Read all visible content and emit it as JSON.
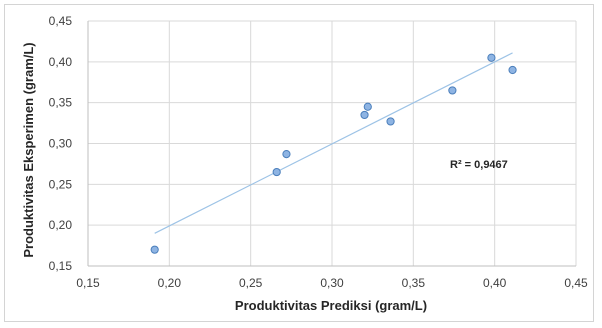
{
  "chart_data": {
    "type": "scatter",
    "xlabel": "Produktivitas Prediksi (gram/L)",
    "ylabel": "Produktivitas Eksperimen (gram/L)",
    "xlim": [
      0.15,
      0.45
    ],
    "ylim": [
      0.15,
      0.45
    ],
    "x_ticks": [
      "0,15",
      "0,20",
      "0,25",
      "0,30",
      "0,35",
      "0,40",
      "0,45"
    ],
    "y_ticks": [
      "0,15",
      "0,20",
      "0,25",
      "0,30",
      "0,35",
      "0,40",
      "0,45"
    ],
    "x_tick_values": [
      0.15,
      0.2,
      0.25,
      0.3,
      0.35,
      0.4,
      0.45
    ],
    "y_tick_values": [
      0.15,
      0.2,
      0.25,
      0.3,
      0.35,
      0.4,
      0.45
    ],
    "grid": true,
    "series": [
      {
        "points": [
          {
            "x": 0.191,
            "y": 0.17
          },
          {
            "x": 0.266,
            "y": 0.265
          },
          {
            "x": 0.272,
            "y": 0.287
          },
          {
            "x": 0.32,
            "y": 0.335
          },
          {
            "x": 0.322,
            "y": 0.345
          },
          {
            "x": 0.336,
            "y": 0.327
          },
          {
            "x": 0.374,
            "y": 0.365
          },
          {
            "x": 0.398,
            "y": 0.405
          },
          {
            "x": 0.411,
            "y": 0.39
          }
        ]
      }
    ],
    "trendline": {
      "from": {
        "x": 0.191,
        "y": 0.19
      },
      "to": {
        "x": 0.411,
        "y": 0.411
      }
    },
    "annotation": "R² = 0,9467",
    "colors": {
      "marker_fill": "#8eb4e3",
      "marker_stroke": "#4a7ebb",
      "trendline": "#9dc3e6",
      "grid": "#d9d9d9",
      "axis": "#bfbfbf"
    }
  }
}
